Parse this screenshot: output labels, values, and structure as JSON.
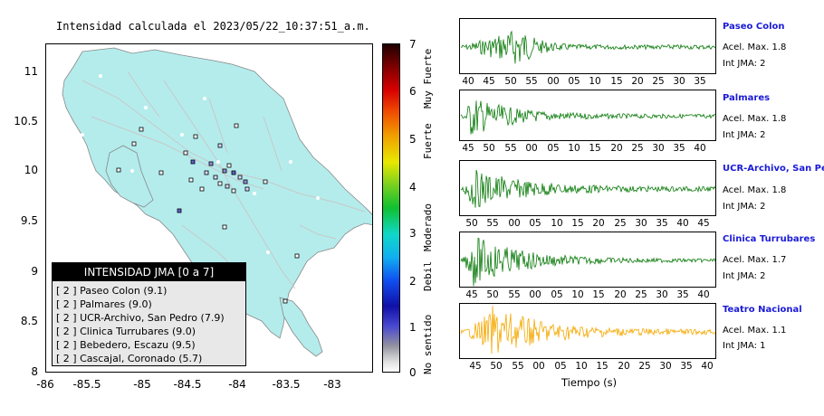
{
  "map": {
    "title": "Intensidad calculada el 2023/05/22_10:37:51_a.m.",
    "yticks": [
      "11",
      "10.5",
      "10",
      "9.5",
      "9",
      "8.5",
      "8"
    ],
    "xticks": [
      "-86",
      "-85.5",
      "-85",
      "-84.5",
      "-84",
      "-83.5",
      "-83"
    ],
    "land_color": "#b4ecec",
    "legend": {
      "title": "INTENSIDAD JMA [0 a 7]",
      "items": [
        "[ 2 ]  Paseo Colon (9.1)",
        "[ 2 ]  Palmares (9.0)",
        "[ 2 ]  UCR-Archivo, San Pedro (7.9)",
        "[ 2 ]  Clinica Turrubares (9.0)",
        "[ 2 ]  Bebedero, Escazu (9.5)",
        "[ 2 ]  Cascajal, Coronado (5.7)"
      ]
    }
  },
  "colorbar": {
    "numbers": [
      "7",
      "6",
      "5",
      "4",
      "3",
      "2",
      "1",
      "0"
    ],
    "labels": [
      "Muy Fuerte",
      "Fuerte",
      "Moderado",
      "Debil",
      "No sentido"
    ]
  },
  "traces": [
    {
      "name": "Paseo Colon",
      "accel": "Acel. Max. 1.8",
      "jma": "Int JMA: 2",
      "color": "#0a7a0a",
      "ticks": [
        "40",
        "45",
        "50",
        "55",
        "00",
        "05",
        "10",
        "15",
        "20",
        "25",
        "30",
        "35"
      ]
    },
    {
      "name": "Palmares",
      "accel": "Acel. Max. 1.8",
      "jma": "Int JMA: 2",
      "color": "#0a7a0a",
      "ticks": [
        "45",
        "50",
        "55",
        "00",
        "05",
        "10",
        "15",
        "20",
        "25",
        "30",
        "35",
        "40"
      ]
    },
    {
      "name": "UCR-Archivo, San Pedro",
      "accel": "Acel. Max. 1.8",
      "jma": "Int JMA: 2",
      "color": "#0a7a0a",
      "ticks": [
        "50",
        "55",
        "00",
        "05",
        "10",
        "15",
        "20",
        "25",
        "30",
        "35",
        "40",
        "45"
      ]
    },
    {
      "name": "Clinica Turrubares",
      "accel": "Acel. Max. 1.7",
      "jma": "Int JMA: 2",
      "color": "#0a7a0a",
      "ticks": [
        "45",
        "50",
        "55",
        "00",
        "05",
        "10",
        "15",
        "20",
        "25",
        "30",
        "35",
        "40"
      ]
    },
    {
      "name": "Teatro Nacional",
      "accel": "Acel. Max. 1.1",
      "jma": "Int JMA: 1",
      "color": "#f5a800",
      "ticks": [
        "45",
        "50",
        "55",
        "00",
        "05",
        "10",
        "15",
        "20",
        "25",
        "30",
        "35",
        "40"
      ]
    }
  ],
  "xlabel": "Tiempo (s)"
}
